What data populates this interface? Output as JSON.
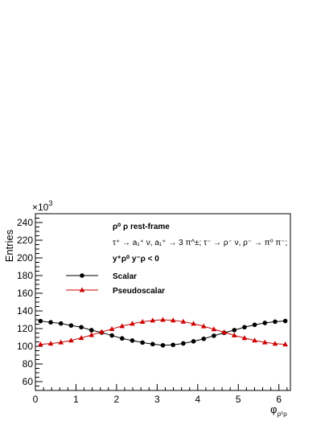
{
  "chart_data": {
    "type": "scatter",
    "ylabel": "Entries",
    "xlabel": "φ",
    "xlabel_sub": "ρ⁰ρ",
    "y_multiplier": "×10",
    "y_multiplier_exp": "3",
    "xlim": [
      0,
      6.2832
    ],
    "ylim": [
      50,
      250
    ],
    "x_ticks": [
      0,
      1,
      2,
      3,
      4,
      5,
      6
    ],
    "x_tick_labels": [
      "0",
      "1",
      "2",
      "3",
      "4",
      "5",
      "6"
    ],
    "y_ticks": [
      60,
      80,
      100,
      120,
      140,
      160,
      180,
      200,
      220,
      240
    ],
    "y_tick_labels": [
      "60",
      "80",
      "100",
      "120",
      "140",
      "160",
      "180",
      "200",
      "220",
      "240"
    ],
    "grid": false,
    "legend_position": "top-left",
    "annotations": {
      "line1": "ρ⁰ ρ  rest-frame",
      "line2": "τ⁺ → a₁⁺ ν, a₁⁺ → 3 π^±; τ⁻ → ρ⁻ ν, ρ⁻ → π⁰ π⁻;",
      "line3": "y⁺ρ⁰ y⁻ρ < 0"
    },
    "x": [
      0.1257,
      0.377,
      0.6283,
      0.8796,
      1.131,
      1.3823,
      1.6336,
      1.885,
      2.1363,
      2.3876,
      2.6389,
      2.8903,
      3.1416,
      3.3929,
      3.6442,
      3.8956,
      4.1469,
      4.3982,
      4.6496,
      4.9009,
      5.1522,
      5.4035,
      5.6549,
      5.9062,
      6.1575
    ],
    "series": [
      {
        "name": "Scalar",
        "color": "#000000",
        "marker": "circle",
        "values": [
          128.5,
          127.1,
          125.8,
          123.5,
          121.6,
          118.2,
          115.5,
          112.2,
          108.9,
          106.5,
          104.2,
          102.4,
          101.1,
          101.6,
          103.2,
          105.6,
          108.4,
          111.9,
          115.2,
          118.3,
          121.6,
          124.3,
          126.4,
          127.8,
          128.6
        ]
      },
      {
        "name": "Pseudoscalar",
        "color": "#cc0000",
        "marker": "triangle",
        "values": [
          102.2,
          103.1,
          104.4,
          106.6,
          109.4,
          112.7,
          116.2,
          119.6,
          122.8,
          125.6,
          127.7,
          129.2,
          130.0,
          129.3,
          127.9,
          125.6,
          122.6,
          119.3,
          115.9,
          112.4,
          109.3,
          106.6,
          104.4,
          103.0,
          102.2
        ]
      }
    ]
  }
}
